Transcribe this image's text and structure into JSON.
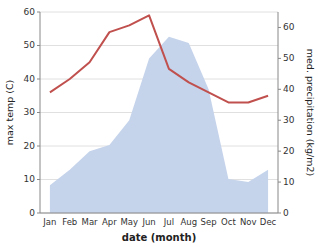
{
  "chart_data": {
    "type": "line",
    "xlabel": "date (month)",
    "ylabel": "max temp (C)",
    "y2label": "med. precipitation (kg/m2)",
    "categories": [
      "Jan",
      "Feb",
      "Mar",
      "Apr",
      "May",
      "Jun",
      "Jul",
      "Aug",
      "Sep",
      "Oct",
      "Nov",
      "Dec"
    ],
    "series": [
      {
        "type": "area",
        "axis": "y2",
        "color": "#c5d3eb",
        "values": [
          9,
          14,
          20,
          22,
          30,
          50,
          57,
          55,
          40,
          11,
          10,
          14
        ]
      },
      {
        "type": "line",
        "color": "#c0504d",
        "values": [
          36,
          40,
          45,
          54,
          56,
          59,
          43,
          39,
          36,
          33,
          33,
          35
        ]
      }
    ],
    "ylim": [
      0,
      60
    ],
    "yticks": [
      0,
      10,
      20,
      30,
      40,
      50,
      60
    ],
    "y2lim": [
      0,
      65
    ],
    "y2ticks": [
      0,
      10,
      20,
      30,
      40,
      50,
      60
    ],
    "grid": true
  }
}
